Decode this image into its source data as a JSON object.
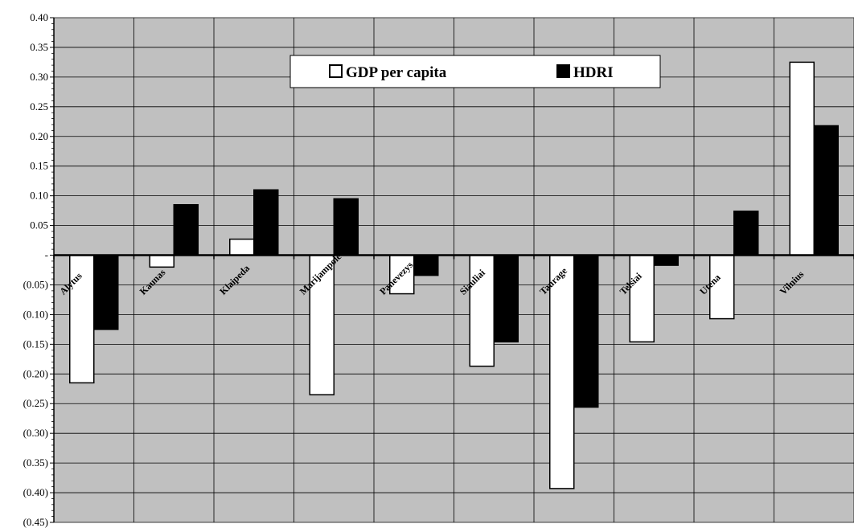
{
  "chart_data": {
    "type": "bar",
    "categories": [
      "Alytus",
      "Kaunas",
      "Klaipeda",
      "Marijampole",
      "Panevezys",
      "Siauliai",
      "Taurage",
      "Telsiai",
      "Utena",
      "Vilnius"
    ],
    "series": [
      {
        "name": "GDP per capita",
        "color": "#ffffff",
        "values": [
          -0.215,
          -0.02,
          0.027,
          -0.235,
          -0.065,
          -0.187,
          -0.393,
          -0.146,
          -0.107,
          0.325
        ]
      },
      {
        "name": "HDRI",
        "color": "#000000",
        "values": [
          -0.125,
          0.085,
          0.11,
          0.095,
          -0.034,
          -0.146,
          -0.256,
          -0.017,
          0.074,
          0.218
        ]
      }
    ],
    "ylim": [
      -0.45,
      0.4
    ],
    "y_ticks": [
      {
        "value": 0.4,
        "label": "0.40"
      },
      {
        "value": 0.35,
        "label": "0.35"
      },
      {
        "value": 0.3,
        "label": "0.30"
      },
      {
        "value": 0.25,
        "label": "0.25"
      },
      {
        "value": 0.2,
        "label": "0.20"
      },
      {
        "value": 0.15,
        "label": "0.15"
      },
      {
        "value": 0.1,
        "label": "0.10"
      },
      {
        "value": 0.05,
        "label": "0.05"
      },
      {
        "value": 0.0,
        "label": "-"
      },
      {
        "value": -0.05,
        "label": "(0.05)"
      },
      {
        "value": -0.1,
        "label": "(0.10)"
      },
      {
        "value": -0.15,
        "label": "(0.15)"
      },
      {
        "value": -0.2,
        "label": "(0.20)"
      },
      {
        "value": -0.25,
        "label": "(0.25)"
      },
      {
        "value": -0.3,
        "label": "(0.30)"
      },
      {
        "value": -0.35,
        "label": "(0.35)"
      },
      {
        "value": -0.4,
        "label": "(0.40)"
      },
      {
        "value": -0.45,
        "label": "(0.45)"
      }
    ],
    "plot_background": "#c0c0c0",
    "grid": true,
    "legend_position": "top-center",
    "xlabel": "",
    "ylabel": "",
    "title": ""
  }
}
